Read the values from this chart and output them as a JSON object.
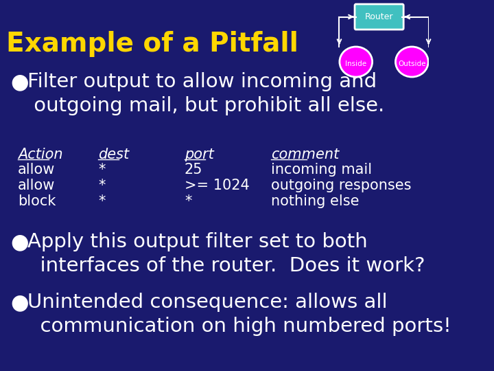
{
  "bg_color": "#1a1a6e",
  "title": "Example of a Pitfall",
  "title_color": "#ffd700",
  "title_fontsize": 28,
  "bullet_color": "#ffffff",
  "bullet1": "Filter output to allow incoming and\n outgoing mail, but prohibit all else.",
  "bullet_fontsize": 21,
  "table_header": [
    "Action",
    "dest",
    "port",
    "comment"
  ],
  "table_rows": [
    [
      "allow",
      "*",
      "25",
      "incoming mail"
    ],
    [
      "allow",
      "*",
      ">= 1024",
      "outgoing responses"
    ],
    [
      "block",
      "*",
      "*",
      "nothing else"
    ]
  ],
  "table_color": "#ffffff",
  "table_fontsize": 15,
  "bullet2": "Apply this output filter set to both\n  interfaces of the router.  Does it work?",
  "bullet3": "Unintended consequence: allows all\n  communication on high numbered ports!",
  "router_box_color": "#40c0c0",
  "router_box_edge": "#ffffff",
  "node_color": "#ff00ff",
  "node_edge": "#ffffff",
  "router_label": "Router",
  "inside_label": "Inside",
  "outside_label": "Outside"
}
